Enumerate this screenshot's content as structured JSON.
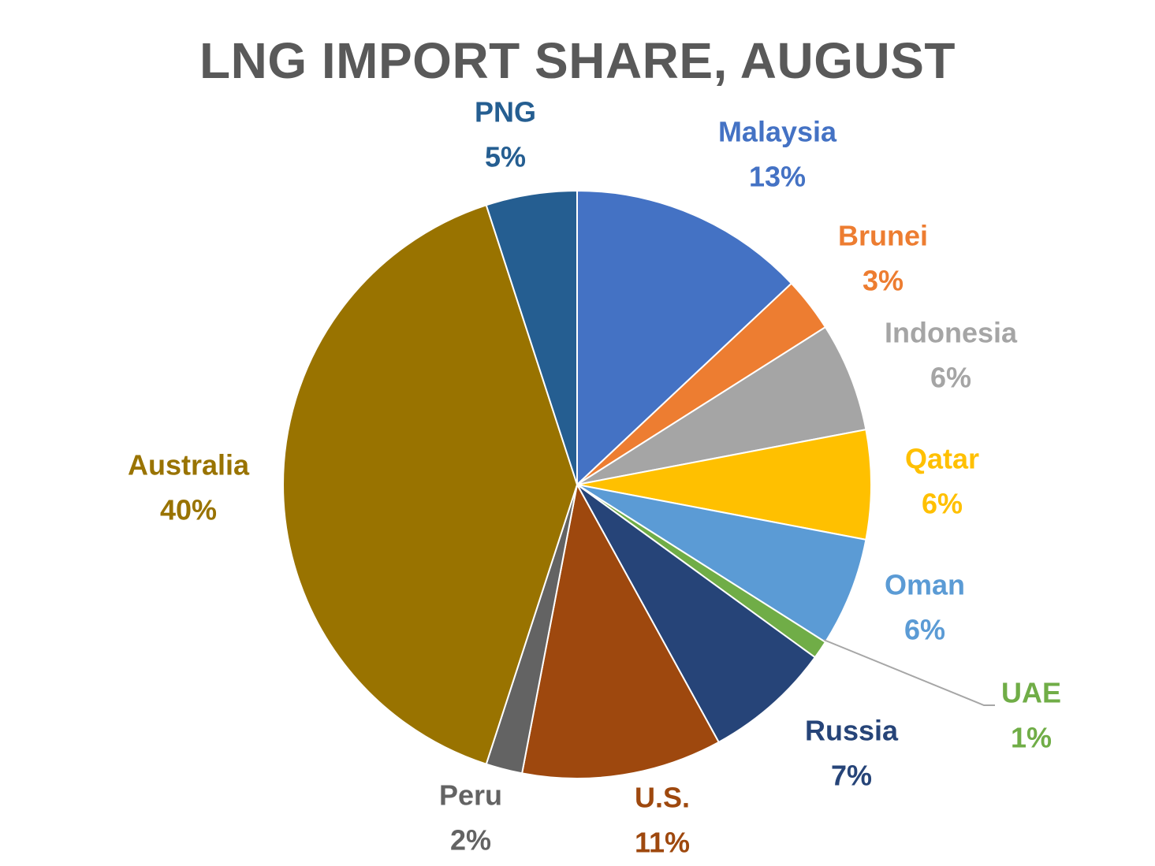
{
  "chart_data": {
    "type": "pie",
    "title": "LNG IMPORT SHARE, AUGUST",
    "slices": [
      {
        "label": "Malaysia",
        "value": 13,
        "display": "13%",
        "color": "#4472C4"
      },
      {
        "label": "Brunei",
        "value": 3,
        "display": "3%",
        "color": "#ED7D31"
      },
      {
        "label": "Indonesia",
        "value": 6,
        "display": "6%",
        "color": "#A5A5A5"
      },
      {
        "label": "Qatar",
        "value": 6,
        "display": "6%",
        "color": "#FFC000"
      },
      {
        "label": "Oman",
        "value": 6,
        "display": "6%",
        "color": "#5B9BD5"
      },
      {
        "label": "UAE",
        "value": 1,
        "display": "1%",
        "color": "#70AD47"
      },
      {
        "label": "Russia",
        "value": 7,
        "display": "7%",
        "color": "#264478"
      },
      {
        "label": "U.S.",
        "value": 11,
        "display": "11%",
        "color": "#9E480E"
      },
      {
        "label": "Peru",
        "value": 2,
        "display": "2%",
        "color": "#636363"
      },
      {
        "label": "Australia",
        "value": 40,
        "display": "40%",
        "color": "#997300"
      },
      {
        "label": "PNG",
        "value": 5,
        "display": "5%",
        "color": "#255E91"
      }
    ]
  }
}
